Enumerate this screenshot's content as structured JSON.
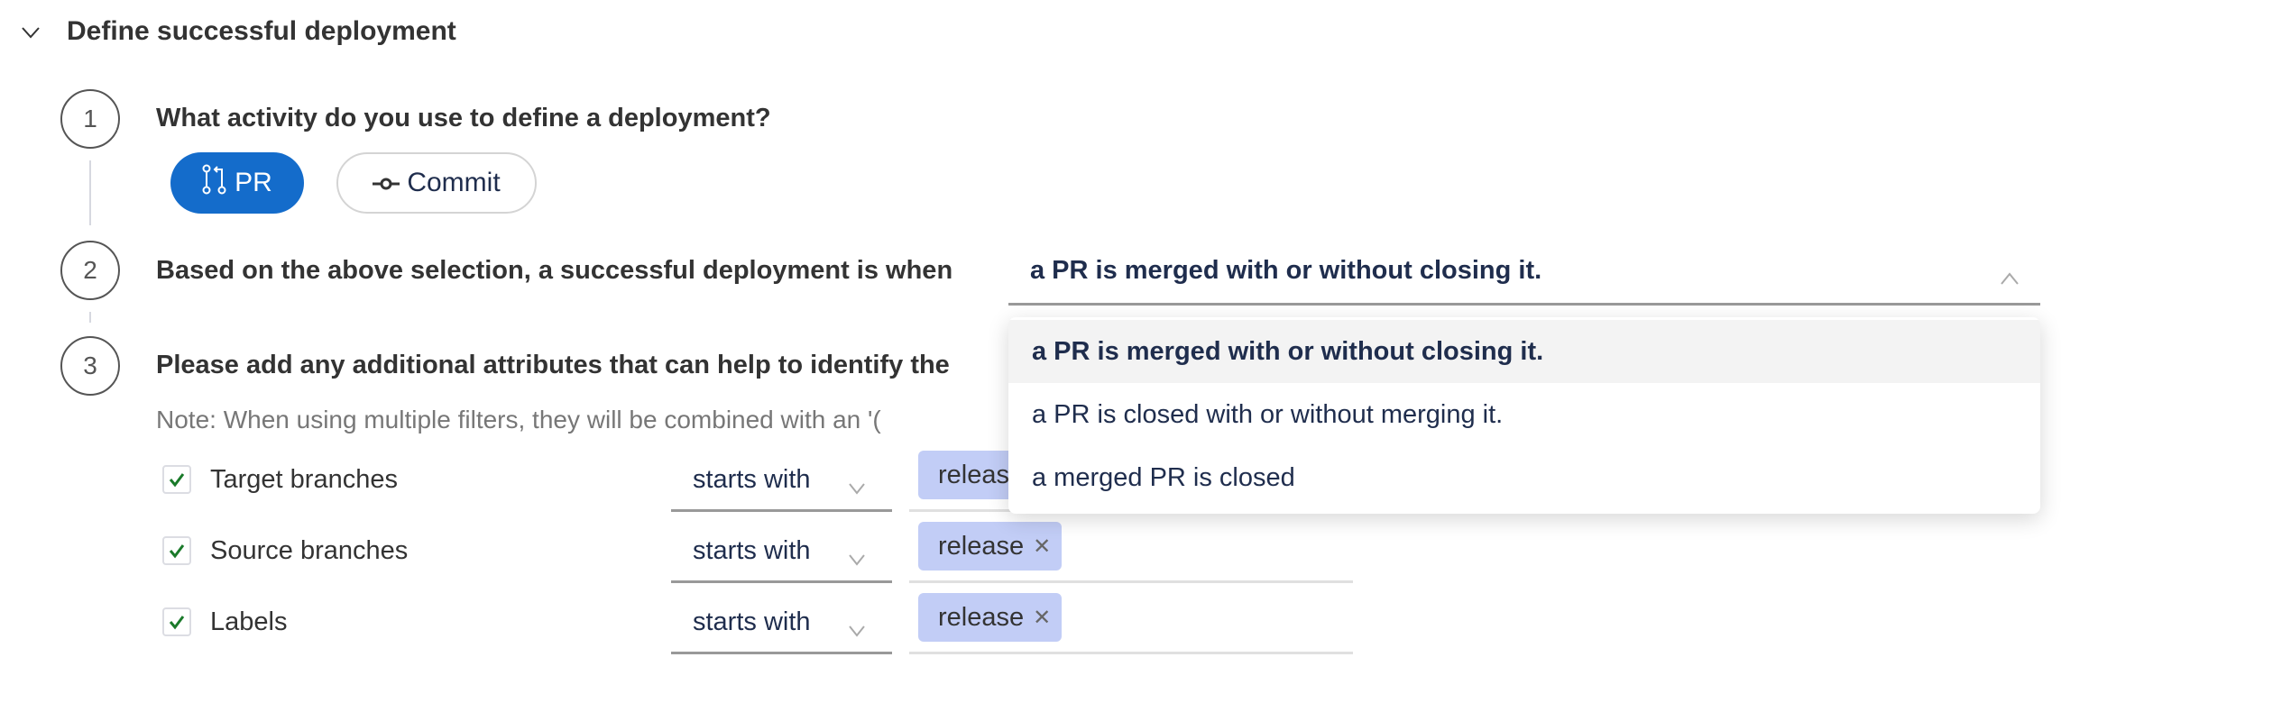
{
  "section": {
    "title": "Define successful deployment",
    "collapse_icon": "chevron-down-icon"
  },
  "steps": [
    {
      "number": "1",
      "question": "What activity do you use to define a deployment?"
    },
    {
      "number": "2",
      "question": "Based on the above selection, a successful deployment is when"
    },
    {
      "number": "3",
      "question": "Please add any additional attributes that can help to identify the",
      "note": "Note: When using multiple filters, they will be combined with an '("
    }
  ],
  "activity": {
    "options": [
      {
        "label": "PR",
        "icon": "pull-request-icon",
        "selected": true
      },
      {
        "label": "Commit",
        "icon": "commit-icon",
        "selected": false
      }
    ],
    "accent": "#146ccb"
  },
  "condition_select": {
    "value": "a PR is merged with or without closing it.",
    "open": true,
    "options": [
      "a PR is merged with or without closing it.",
      "a PR is closed with or without merging it.",
      "a merged PR is closed"
    ]
  },
  "filters": [
    {
      "label": "Target branches",
      "checked": true,
      "operator": "starts with",
      "tags": [
        "releas"
      ]
    },
    {
      "label": "Source branches",
      "checked": true,
      "operator": "starts with",
      "tags": [
        "release"
      ]
    },
    {
      "label": "Labels",
      "checked": true,
      "operator": "starts with",
      "tags": [
        "release"
      ]
    }
  ]
}
